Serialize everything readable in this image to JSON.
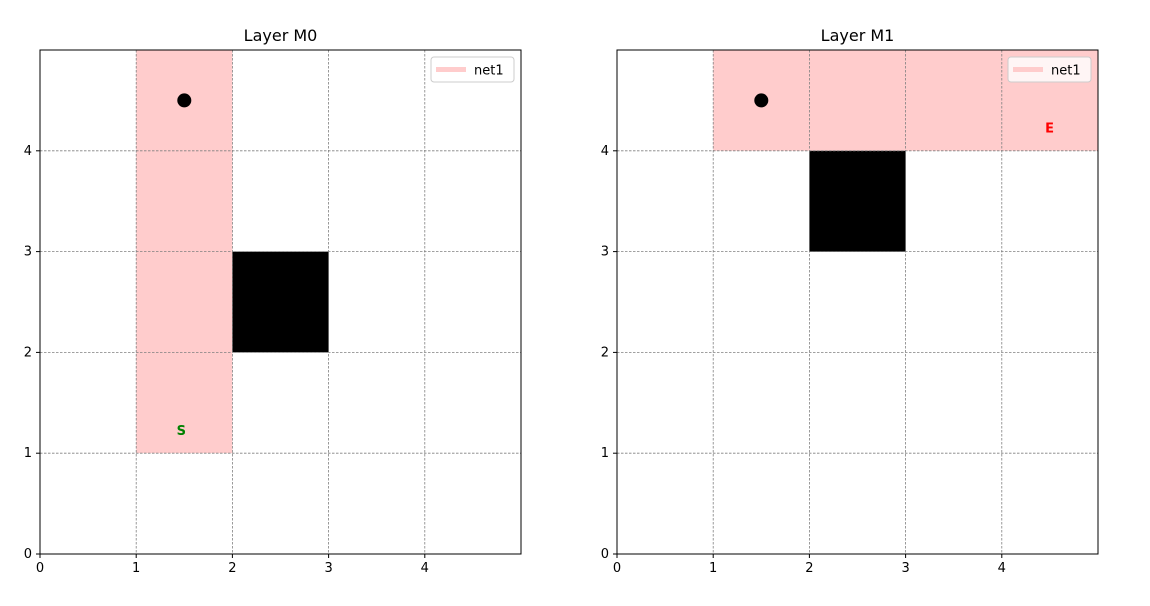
{
  "figure": {
    "panels_count": 2
  },
  "chart_data": [
    {
      "type": "heatmap",
      "title": "Layer M0",
      "xlabel": "",
      "ylabel": "",
      "xlim": [
        0,
        5
      ],
      "ylim": [
        0,
        5
      ],
      "xticks": [
        0,
        1,
        2,
        3,
        4
      ],
      "yticks": [
        0,
        1,
        2,
        3,
        4
      ],
      "grid": true,
      "legend": {
        "placement": "top-right",
        "entries": [
          {
            "label": "net1",
            "color": "#ffcccc"
          }
        ]
      },
      "route_cells": [
        {
          "x": 1,
          "y": 1,
          "w": 1,
          "h": 4
        }
      ],
      "obstacles": [
        {
          "x": 2,
          "y": 2,
          "w": 1,
          "h": 1
        }
      ],
      "points": [
        {
          "x": 1.5,
          "y": 4.5,
          "color": "#000000"
        }
      ],
      "annotations": [
        {
          "text": "S",
          "x": 1.42,
          "y": 1.18,
          "color": "#008000"
        }
      ]
    },
    {
      "type": "heatmap",
      "title": "Layer M1",
      "xlabel": "",
      "ylabel": "",
      "xlim": [
        0,
        5
      ],
      "ylim": [
        0,
        5
      ],
      "xticks": [
        0,
        1,
        2,
        3,
        4
      ],
      "yticks": [
        0,
        1,
        2,
        3,
        4
      ],
      "grid": true,
      "legend": {
        "placement": "top-right",
        "entries": [
          {
            "label": "net1",
            "color": "#ffcccc"
          }
        ]
      },
      "route_cells": [
        {
          "x": 1,
          "y": 4,
          "w": 4,
          "h": 1
        }
      ],
      "obstacles": [
        {
          "x": 2,
          "y": 3,
          "w": 1,
          "h": 1
        }
      ],
      "points": [
        {
          "x": 1.5,
          "y": 4.5,
          "color": "#000000"
        }
      ],
      "annotations": [
        {
          "text": "E",
          "x": 4.45,
          "y": 4.18,
          "color": "#ff0000"
        }
      ]
    }
  ]
}
